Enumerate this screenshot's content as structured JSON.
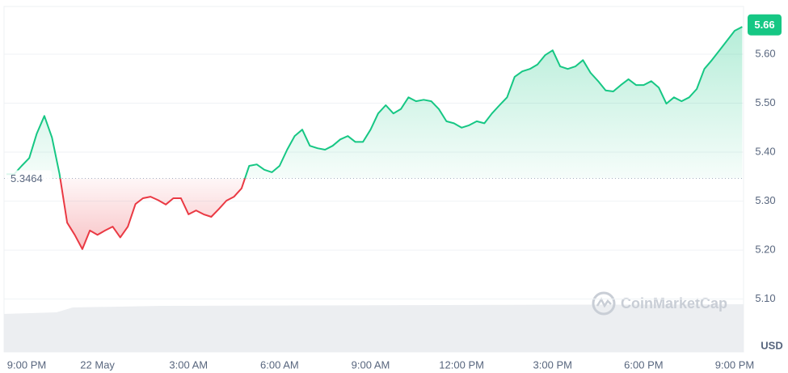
{
  "chart_data": {
    "type": "line",
    "y_label": "USD",
    "watermark": "CoinMarketCap",
    "reference": 5.3464,
    "reference_label": "5.3464",
    "current": 5.66,
    "current_label": "5.66",
    "up_color": "#16c784",
    "down_color": "#ea3943",
    "categories": [
      "9:00 PM",
      null,
      null,
      null,
      null,
      null,
      null,
      null,
      null,
      null,
      null,
      null,
      "22 May",
      null,
      null,
      null,
      null,
      null,
      null,
      null,
      null,
      null,
      null,
      null,
      "3:00 AM",
      null,
      null,
      null,
      null,
      null,
      null,
      null,
      null,
      null,
      null,
      null,
      "6:00 AM",
      null,
      null,
      null,
      null,
      null,
      null,
      null,
      null,
      null,
      null,
      null,
      "9:00 AM",
      null,
      null,
      null,
      null,
      null,
      null,
      null,
      null,
      null,
      null,
      null,
      "12:00 PM",
      null,
      null,
      null,
      null,
      null,
      null,
      null,
      null,
      null,
      null,
      null,
      "3:00 PM",
      null,
      null,
      null,
      null,
      null,
      null,
      null,
      null,
      null,
      null,
      null,
      "6:00 PM",
      null,
      null,
      null,
      null,
      null,
      null,
      null,
      null,
      null,
      null,
      null,
      "9:00 PM",
      null
    ],
    "values": [
      5.355,
      5.355,
      5.372,
      5.388,
      5.438,
      5.474,
      5.43,
      5.355,
      5.256,
      5.231,
      5.202,
      5.24,
      5.231,
      5.24,
      5.248,
      5.226,
      5.248,
      5.294,
      5.306,
      5.309,
      5.302,
      5.293,
      5.306,
      5.306,
      5.273,
      5.281,
      5.273,
      5.268,
      5.284,
      5.301,
      5.309,
      5.326,
      5.372,
      5.375,
      5.364,
      5.359,
      5.372,
      5.405,
      5.433,
      5.446,
      5.413,
      5.408,
      5.405,
      5.413,
      5.426,
      5.433,
      5.421,
      5.421,
      5.446,
      5.479,
      5.496,
      5.479,
      5.488,
      5.512,
      5.504,
      5.507,
      5.504,
      5.488,
      5.463,
      5.459,
      5.45,
      5.455,
      5.463,
      5.459,
      5.479,
      5.496,
      5.512,
      5.554,
      5.565,
      5.57,
      5.579,
      5.598,
      5.608,
      5.575,
      5.57,
      5.575,
      5.588,
      5.562,
      5.545,
      5.526,
      5.524,
      5.537,
      5.549,
      5.537,
      5.537,
      5.545,
      5.532,
      5.499,
      5.512,
      5.504,
      5.512,
      5.529,
      5.57,
      5.588,
      5.608,
      5.628,
      5.648,
      5.656
    ],
    "ylim": [
      4.992,
      5.6975
    ],
    "yticks": [
      {
        "value": 5.1,
        "label": "5.10"
      },
      {
        "value": 5.2,
        "label": "5.20"
      },
      {
        "value": 5.3,
        "label": "5.30"
      },
      {
        "value": 5.4,
        "label": "5.40"
      },
      {
        "value": 5.5,
        "label": "5.50"
      },
      {
        "value": 5.6,
        "label": "5.60"
      }
    ],
    "grid": true
  }
}
